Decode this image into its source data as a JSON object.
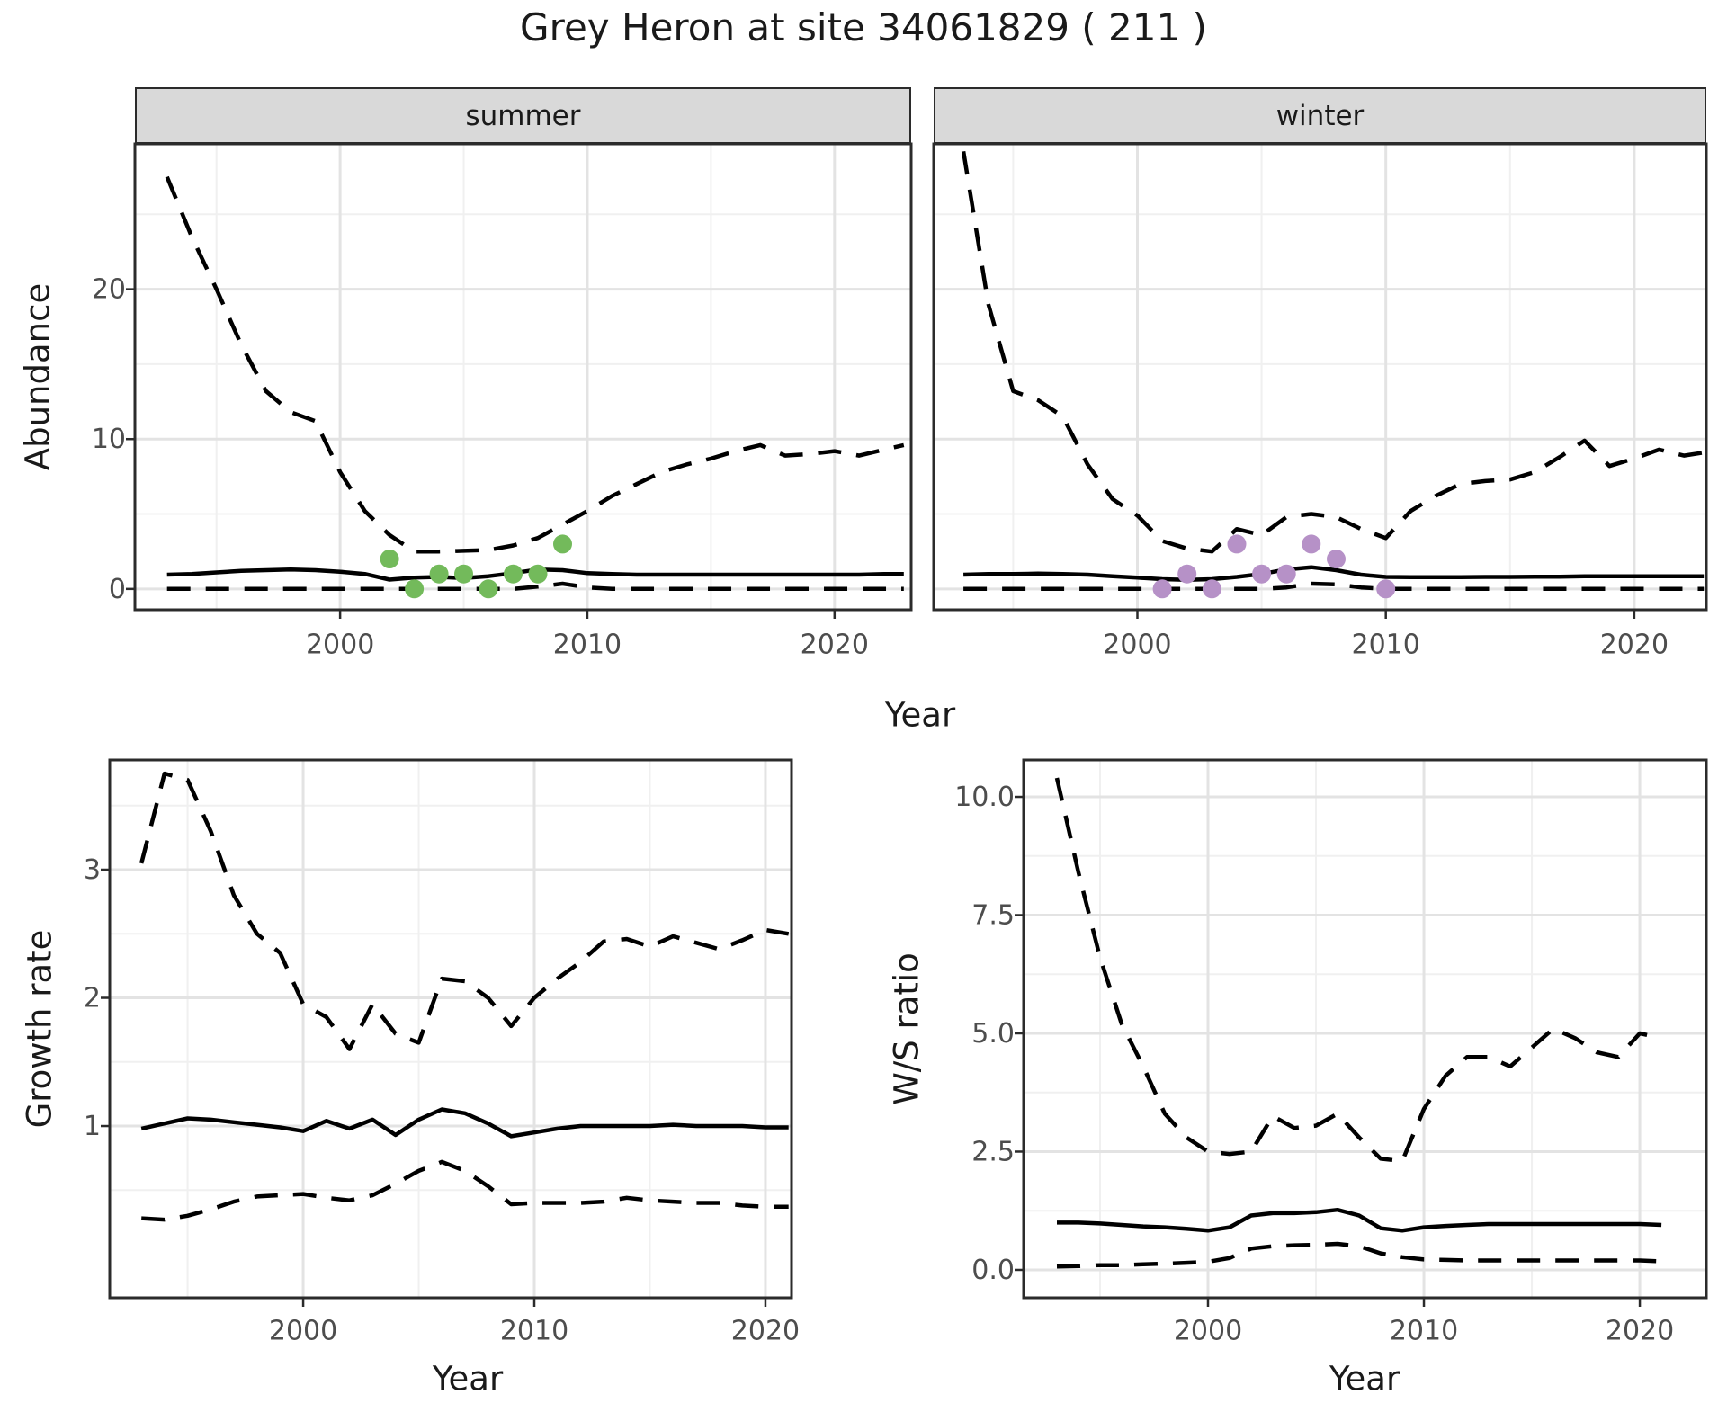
{
  "title": "Grey Heron at site 34061829 ( 211 )",
  "colors": {
    "summer_points": "#73BA5B",
    "winter_points": "#B691C7",
    "line": "#000000",
    "strip_bg": "#D9D9D9",
    "panel_border": "#2B2B2B",
    "grid_major": "#E3E3E3",
    "grid_minor": "#F0F0F0",
    "tick_text": "#4D4D4D"
  },
  "chart_data": [
    {
      "id": "abundance-summer",
      "type": "line",
      "facet_label": "summer",
      "xlabel": "Year",
      "ylabel": "Abundance",
      "xlim": [
        1991.7,
        2023.1
      ],
      "ylim": [
        -1.39,
        29.7
      ],
      "xticks": [
        2000,
        2010,
        2020
      ],
      "xtick_labels": [
        "2000",
        "2010",
        "2020"
      ],
      "xticks_minor": [
        1995,
        2005,
        2015
      ],
      "yticks": [
        0,
        10,
        20
      ],
      "ytick_labels": [
        "0",
        "10",
        "20"
      ],
      "yticks_minor": [
        5,
        15,
        25
      ],
      "grid": true,
      "legend": "none",
      "series": [
        {
          "name": "upper_ci_dashed",
          "style": "dashed",
          "x": [
            1993,
            1994,
            1995,
            1996,
            1997,
            1998,
            1999,
            2000,
            2001,
            2002,
            2003,
            2004,
            2005,
            2006,
            2007,
            2008,
            2009,
            2010,
            2011,
            2012,
            2013,
            2014,
            2015,
            2016,
            2017,
            2018,
            2019,
            2020,
            2021,
            2022,
            2022.8
          ],
          "y": [
            27.5,
            23.5,
            20,
            16.3,
            13.2,
            11.8,
            11.2,
            7.8,
            5.2,
            3.6,
            2.5,
            2.5,
            2.55,
            2.6,
            2.9,
            3.4,
            4.3,
            5.2,
            6.2,
            7.0,
            7.8,
            8.3,
            8.7,
            9.2,
            9.6,
            8.9,
            9.0,
            9.2,
            8.9,
            9.3,
            9.6
          ]
        },
        {
          "name": "median_solid",
          "style": "solid",
          "x": [
            1993,
            1994,
            1995,
            1996,
            1997,
            1998,
            1999,
            2000,
            2001,
            2002,
            2003,
            2004,
            2005,
            2006,
            2007,
            2008,
            2009,
            2010,
            2011,
            2012,
            2013,
            2014,
            2015,
            2016,
            2017,
            2018,
            2019,
            2020,
            2021,
            2022,
            2022.8
          ],
          "y": [
            0.95,
            1.0,
            1.1,
            1.2,
            1.25,
            1.3,
            1.25,
            1.15,
            1.0,
            0.62,
            0.75,
            0.8,
            0.72,
            0.85,
            1.05,
            1.3,
            1.25,
            1.05,
            1.0,
            0.95,
            0.95,
            0.95,
            0.95,
            0.95,
            0.95,
            0.95,
            0.95,
            0.95,
            0.95,
            1.0,
            1.0
          ]
        },
        {
          "name": "lower_ci_dashed",
          "style": "dashed",
          "x": [
            1993,
            1994,
            1995,
            1996,
            1997,
            1998,
            1999,
            2000,
            2001,
            2002,
            2003,
            2004,
            2005,
            2006,
            2007,
            2008,
            2009,
            2010,
            2011,
            2012,
            2013,
            2014,
            2015,
            2016,
            2017,
            2018,
            2019,
            2020,
            2021,
            2022,
            2022.8
          ],
          "y": [
            0,
            0,
            0,
            0,
            0,
            0,
            0,
            0,
            0,
            0,
            0,
            0,
            0,
            0,
            0,
            0.15,
            0.35,
            0.1,
            0,
            0,
            0,
            0,
            0,
            0,
            0,
            0,
            0,
            0,
            0,
            0,
            0
          ]
        }
      ],
      "points": {
        "name": "observed-abundance-summer",
        "color_key": "summer_points",
        "x": [
          2002,
          2003,
          2004,
          2005,
          2006,
          2007,
          2008,
          2009
        ],
        "y": [
          2,
          0,
          1,
          1,
          0,
          1,
          1,
          3
        ]
      }
    },
    {
      "id": "abundance-winter",
      "type": "line",
      "facet_label": "winter",
      "xlabel": "Year",
      "ylabel": "Abundance",
      "xlim": [
        1991.8,
        2022.9
      ],
      "ylim": [
        -1.39,
        29.7
      ],
      "xticks": [
        2000,
        2010,
        2020
      ],
      "xtick_labels": [
        "2000",
        "2010",
        "2020"
      ],
      "xticks_minor": [
        1995,
        2005,
        2015
      ],
      "yticks": [
        0,
        10,
        20
      ],
      "ytick_labels": [
        "0",
        "10",
        "20"
      ],
      "yticks_minor": [
        5,
        15,
        25
      ],
      "grid": true,
      "legend": "none",
      "series": [
        {
          "name": "upper_ci_dashed",
          "style": "dashed",
          "x": [
            1993,
            1994,
            1995,
            1996,
            1997,
            1998,
            1999,
            2000,
            2001,
            2002,
            2003,
            2004,
            2005,
            2006,
            2007,
            2008,
            2009,
            2010,
            2011,
            2012,
            2013,
            2014,
            2015,
            2016,
            2017,
            2018,
            2019,
            2020,
            2021,
            2022,
            2022.8
          ],
          "y": [
            29.2,
            19,
            13.2,
            12.6,
            11.5,
            8.3,
            6.0,
            4.9,
            3.2,
            2.7,
            2.5,
            4.0,
            3.6,
            4.8,
            5.0,
            4.8,
            4.0,
            3.4,
            5.2,
            6.2,
            7.0,
            7.2,
            7.3,
            7.8,
            8.8,
            9.9,
            8.2,
            8.7,
            9.3,
            8.9,
            9.1
          ]
        },
        {
          "name": "median_solid",
          "style": "solid",
          "x": [
            1993,
            1994,
            1995,
            1996,
            1997,
            1998,
            1999,
            2000,
            2001,
            2002,
            2003,
            2004,
            2005,
            2006,
            2007,
            2008,
            2009,
            2010,
            2011,
            2012,
            2013,
            2014,
            2015,
            2016,
            2017,
            2018,
            2019,
            2020,
            2021,
            2022,
            2022.8
          ],
          "y": [
            0.95,
            1.0,
            1.0,
            1.02,
            1.0,
            0.95,
            0.85,
            0.75,
            0.65,
            0.6,
            0.65,
            0.8,
            1.0,
            1.3,
            1.45,
            1.25,
            0.95,
            0.8,
            0.78,
            0.78,
            0.78,
            0.8,
            0.8,
            0.82,
            0.82,
            0.85,
            0.85,
            0.85,
            0.85,
            0.85,
            0.85
          ]
        },
        {
          "name": "lower_ci_dashed",
          "style": "dashed",
          "x": [
            1993,
            1994,
            1995,
            1996,
            1997,
            1998,
            1999,
            2000,
            2001,
            2002,
            2003,
            2004,
            2005,
            2006,
            2007,
            2008,
            2009,
            2010,
            2011,
            2012,
            2013,
            2014,
            2015,
            2016,
            2017,
            2018,
            2019,
            2020,
            2021,
            2022,
            2022.8
          ],
          "y": [
            0,
            0,
            0,
            0,
            0,
            0,
            0,
            0,
            0,
            0,
            0,
            0,
            0,
            0.1,
            0.35,
            0.3,
            0.1,
            0,
            0,
            0,
            0,
            0,
            0,
            0,
            0,
            0,
            0,
            0,
            0,
            0,
            0
          ]
        }
      ],
      "points": {
        "name": "observed-abundance-winter",
        "color_key": "winter_points",
        "x": [
          2001,
          2002,
          2003,
          2004,
          2005,
          2006,
          2007,
          2008,
          2010
        ],
        "y": [
          0,
          1,
          0,
          3,
          1,
          1,
          3,
          2,
          0
        ]
      }
    },
    {
      "id": "growth-rate",
      "type": "line",
      "facet_label": "",
      "xlabel": "Year",
      "ylabel": "Growth rate",
      "xlim": [
        1991.63,
        2021.13
      ],
      "ylim": [
        -0.34,
        3.856
      ],
      "xticks": [
        2000,
        2010,
        2020
      ],
      "xtick_labels": [
        "2000",
        "2010",
        "2020"
      ],
      "xticks_minor": [
        1995,
        2005,
        2015
      ],
      "yticks": [
        1,
        2,
        3
      ],
      "ytick_labels": [
        "1",
        "2",
        "3"
      ],
      "yticks_minor": [
        0.5,
        1.5,
        2.5,
        3.5
      ],
      "grid": true,
      "legend": "none",
      "series": [
        {
          "name": "upper_ci_dashed",
          "style": "dashed",
          "x": [
            1993,
            1994,
            1995,
            1996,
            1997,
            1998,
            1999,
            2000,
            2001,
            2002,
            2003,
            2004,
            2005,
            2006,
            2007,
            2008,
            2009,
            2010,
            2011,
            2012,
            2013,
            2014,
            2015,
            2016,
            2017,
            2018,
            2019,
            2020,
            2021
          ],
          "y": [
            3.05,
            3.75,
            3.7,
            3.3,
            2.8,
            2.5,
            2.35,
            1.95,
            1.85,
            1.6,
            1.95,
            1.72,
            1.65,
            2.15,
            2.13,
            2.0,
            1.78,
            2.0,
            2.15,
            2.28,
            2.44,
            2.46,
            2.4,
            2.48,
            2.43,
            2.38,
            2.45,
            2.53,
            2.5
          ]
        },
        {
          "name": "median_solid",
          "style": "solid",
          "x": [
            1993,
            1994,
            1995,
            1996,
            1997,
            1998,
            1999,
            2000,
            2001,
            2002,
            2003,
            2004,
            2005,
            2006,
            2007,
            2008,
            2009,
            2010,
            2011,
            2012,
            2013,
            2014,
            2015,
            2016,
            2017,
            2018,
            2019,
            2020,
            2021
          ],
          "y": [
            0.98,
            1.02,
            1.06,
            1.05,
            1.03,
            1.01,
            0.99,
            0.96,
            1.04,
            0.98,
            1.05,
            0.93,
            1.05,
            1.13,
            1.1,
            1.02,
            0.92,
            0.95,
            0.98,
            1.0,
            1.0,
            1.0,
            1.0,
            1.01,
            1.0,
            1.0,
            1.0,
            0.99,
            0.99
          ]
        },
        {
          "name": "lower_ci_dashed",
          "style": "dashed",
          "x": [
            1993,
            1994,
            1995,
            1996,
            1997,
            1998,
            1999,
            2000,
            2001,
            2002,
            2003,
            2004,
            2005,
            2006,
            2007,
            2008,
            2009,
            2010,
            2011,
            2012,
            2013,
            2014,
            2015,
            2016,
            2017,
            2018,
            2019,
            2020,
            2021
          ],
          "y": [
            0.28,
            0.27,
            0.3,
            0.35,
            0.41,
            0.45,
            0.46,
            0.47,
            0.44,
            0.42,
            0.46,
            0.55,
            0.65,
            0.72,
            0.65,
            0.53,
            0.39,
            0.4,
            0.4,
            0.4,
            0.41,
            0.44,
            0.42,
            0.41,
            0.4,
            0.4,
            0.38,
            0.37,
            0.37
          ]
        }
      ],
      "points": null
    },
    {
      "id": "ws-ratio",
      "type": "line",
      "facet_label": "",
      "xlabel": "Year",
      "ylabel": "W/S ratio",
      "xlim": [
        1991.46,
        2023.08
      ],
      "ylim": [
        -0.59,
        10.78
      ],
      "xticks": [
        2000,
        2010,
        2020
      ],
      "xtick_labels": [
        "2000",
        "2010",
        "2020"
      ],
      "xticks_minor": [
        1995,
        2005,
        2015
      ],
      "yticks": [
        0,
        2.5,
        5,
        7.5,
        10
      ],
      "ytick_labels": [
        "0.0",
        "2.5",
        "5.0",
        "7.5",
        "10.0"
      ],
      "yticks_minor": [
        1.25,
        3.75,
        6.25,
        8.75
      ],
      "grid": true,
      "legend": "none",
      "series": [
        {
          "name": "upper_ci_dashed",
          "style": "dashed",
          "x": [
            1993,
            1994,
            1995,
            1996,
            1997,
            1998,
            1999,
            2000,
            2001,
            2002,
            2003,
            2004,
            2005,
            2006,
            2007,
            2008,
            2009,
            2010,
            2011,
            2012,
            2013,
            2014,
            2015,
            2016,
            2017,
            2018,
            2019,
            2020,
            2021
          ],
          "y": [
            10.4,
            8.4,
            6.6,
            5.2,
            4.3,
            3.3,
            2.8,
            2.5,
            2.45,
            2.5,
            3.25,
            3.0,
            3.05,
            3.3,
            2.8,
            2.35,
            2.3,
            3.4,
            4.1,
            4.5,
            4.5,
            4.3,
            4.7,
            5.1,
            4.9,
            4.6,
            4.5,
            5.0,
            4.9
          ]
        },
        {
          "name": "median_solid",
          "style": "solid",
          "x": [
            1993,
            1994,
            1995,
            1996,
            1997,
            1998,
            1999,
            2000,
            2001,
            2002,
            2003,
            2004,
            2005,
            2006,
            2007,
            2008,
            2009,
            2010,
            2011,
            2012,
            2013,
            2014,
            2015,
            2016,
            2017,
            2018,
            2019,
            2020,
            2021
          ],
          "y": [
            1.0,
            1.0,
            0.98,
            0.95,
            0.92,
            0.9,
            0.87,
            0.83,
            0.9,
            1.15,
            1.2,
            1.2,
            1.22,
            1.27,
            1.15,
            0.88,
            0.83,
            0.9,
            0.93,
            0.95,
            0.97,
            0.97,
            0.97,
            0.97,
            0.97,
            0.97,
            0.97,
            0.97,
            0.95
          ]
        },
        {
          "name": "lower_ci_dashed",
          "style": "dashed",
          "x": [
            1993,
            1994,
            1995,
            1996,
            1997,
            1998,
            1999,
            2000,
            2001,
            2002,
            2003,
            2004,
            2005,
            2006,
            2007,
            2008,
            2009,
            2010,
            2011,
            2012,
            2013,
            2014,
            2015,
            2016,
            2017,
            2018,
            2019,
            2020,
            2021
          ],
          "y": [
            0.07,
            0.08,
            0.1,
            0.1,
            0.12,
            0.13,
            0.15,
            0.17,
            0.25,
            0.45,
            0.5,
            0.52,
            0.53,
            0.55,
            0.5,
            0.35,
            0.27,
            0.22,
            0.21,
            0.2,
            0.2,
            0.2,
            0.2,
            0.2,
            0.2,
            0.2,
            0.2,
            0.2,
            0.18
          ]
        }
      ],
      "points": null
    }
  ]
}
